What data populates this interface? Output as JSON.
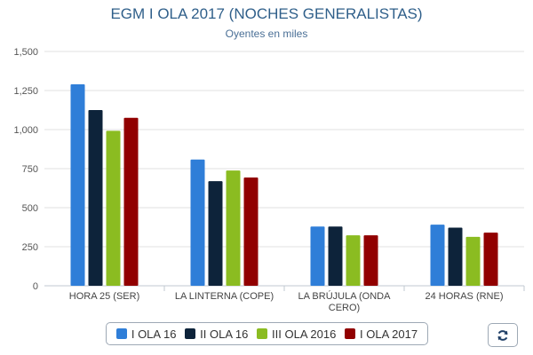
{
  "chart_data": {
    "type": "bar",
    "title": "EGM I OLA 2017 (NOCHES GENERALISTAS)",
    "subtitle": "Oyentes en miles",
    "categories": [
      [
        "HORA 25 (SER)"
      ],
      [
        "LA LINTERNA (COPE)"
      ],
      [
        "LA BRÚJULA (ONDA",
        "CERO)"
      ],
      [
        "24 HORAS (RNE)"
      ]
    ],
    "series": [
      {
        "name": "I OLA 16",
        "color": "#2f7ed8",
        "values": [
          1290,
          808,
          379,
          391
        ]
      },
      {
        "name": "II OLA 16",
        "color": "#0d233a",
        "values": [
          1125,
          670,
          379,
          372
        ]
      },
      {
        "name": "III OLA 2016",
        "color": "#8bbc21",
        "values": [
          992,
          738,
          323,
          313
        ]
      },
      {
        "name": "I OLA 2017",
        "color": "#910000",
        "values": [
          1075,
          693,
          323,
          340
        ]
      }
    ],
    "ylim": [
      0,
      1500
    ],
    "yticks": [
      "0",
      "250",
      "500",
      "750",
      "1,000",
      "1,250",
      "1,500"
    ],
    "grid": true,
    "legend_position": "bottom"
  },
  "controls": {
    "refresh_icon": "refresh-icon"
  }
}
